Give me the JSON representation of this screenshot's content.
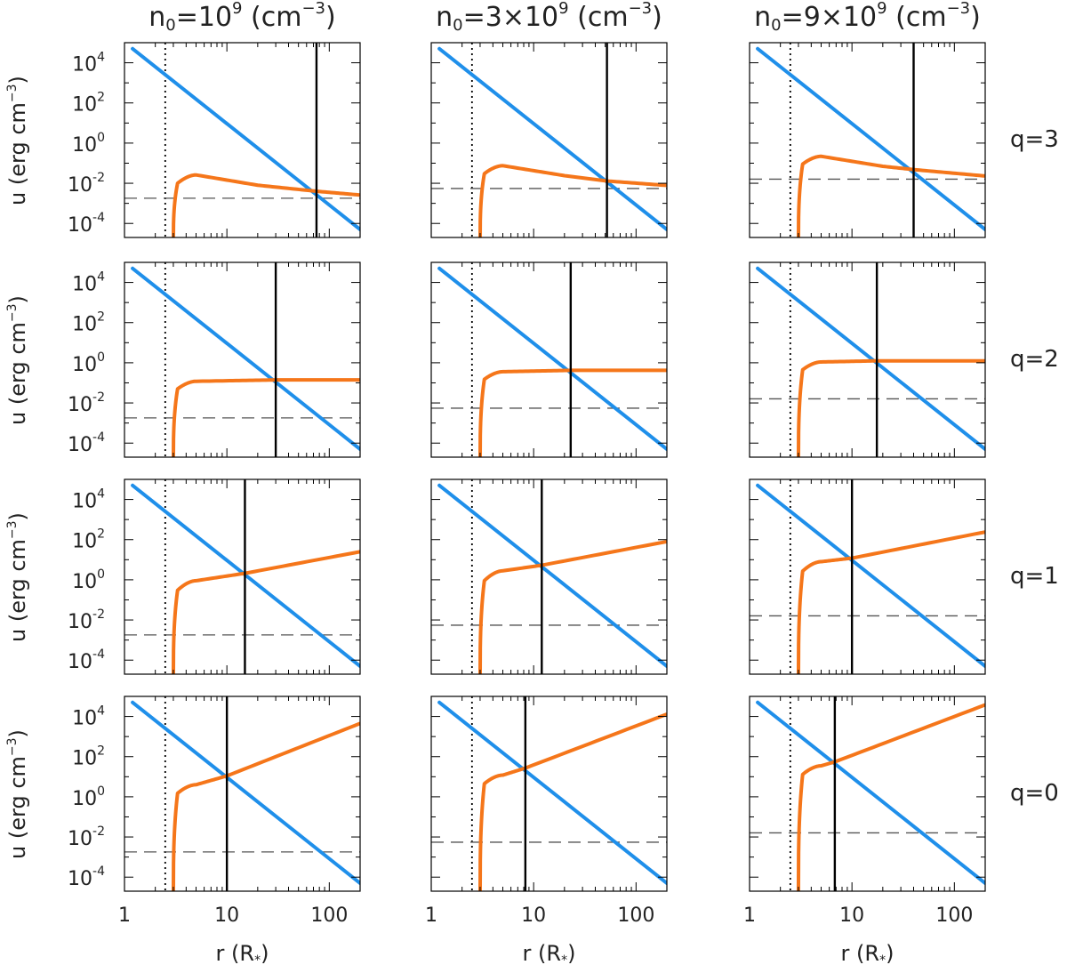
{
  "chart_data": {
    "type": "line",
    "layout": "grid 4 rows x 3 columns",
    "column_titles": [
      {
        "base": "n",
        "sub": "0",
        "prefix": "=10",
        "sup": "9",
        "unit": " (cm",
        "unit_sup": "−3",
        "close": ")"
      },
      {
        "base": "n",
        "sub": "0",
        "prefix": "=3×10",
        "sup": "9",
        "unit": " (cm",
        "unit_sup": "−3",
        "close": ")"
      },
      {
        "base": "n",
        "sub": "0",
        "prefix": "=9×10",
        "sup": "9",
        "unit": " (cm",
        "unit_sup": "−3",
        "close": ")"
      }
    ],
    "row_labels": [
      "q=3",
      "q=2",
      "q=1",
      "q=0"
    ],
    "ylabel": {
      "text": "u (erg cm",
      "sup": "−3",
      "close": ")"
    },
    "xlabel": {
      "text": "r (R",
      "sub": "*",
      "close": ")"
    },
    "xscale": "log",
    "yscale": "log",
    "xlim": [
      1,
      200
    ],
    "ylim": [
      2e-05,
      100000
    ],
    "x_tick_labels": [
      "1",
      "10",
      "100"
    ],
    "y_tick_labels": [
      {
        "base": "10",
        "exp": "4"
      },
      {
        "base": "10",
        "exp": "2"
      },
      {
        "base": "10",
        "exp": "0"
      },
      {
        "base": "10",
        "exp": "-2"
      },
      {
        "base": "10",
        "exp": "-4"
      }
    ],
    "dotted_line_r": 2.5,
    "series_colors": {
      "magnetic": "#1f8fea",
      "kinetic": "#f5761a",
      "crossing": "#000000",
      "dotted": "#000000",
      "dashed": "#555555"
    },
    "series": [
      {
        "name": "magnetic energy density (blue)",
        "form": "power law",
        "points": [
          [
            1.2,
            50000
          ],
          [
            200,
            5e-05
          ]
        ]
      },
      {
        "name": "thermal/kinetic energy density (orange)",
        "start_r": 3.0
      },
      {
        "name": "crossing radius (solid black vertical)"
      },
      {
        "name": "reference level (dashed horizontal)"
      }
    ],
    "panels": [
      {
        "row": 0,
        "col": 0,
        "q": 3,
        "crossing_r": 75,
        "dashed_u": 0.0018,
        "orange": [
          [
            3.0,
            1e-05
          ],
          [
            3.3,
            0.01
          ],
          [
            5,
            0.026
          ],
          [
            20,
            0.008
          ],
          [
            75,
            0.004
          ],
          [
            200,
            0.0026
          ]
        ]
      },
      {
        "row": 0,
        "col": 1,
        "q": 3,
        "crossing_r": 52,
        "dashed_u": 0.0055,
        "orange": [
          [
            3.0,
            1e-05
          ],
          [
            3.3,
            0.03
          ],
          [
            5,
            0.075
          ],
          [
            20,
            0.024
          ],
          [
            52,
            0.013
          ],
          [
            200,
            0.0078
          ]
        ]
      },
      {
        "row": 0,
        "col": 2,
        "q": 3,
        "crossing_r": 40,
        "dashed_u": 0.016,
        "orange": [
          [
            3.0,
            1e-05
          ],
          [
            3.3,
            0.09
          ],
          [
            5,
            0.22
          ],
          [
            20,
            0.07
          ],
          [
            40,
            0.048
          ],
          [
            200,
            0.023
          ]
        ]
      },
      {
        "row": 1,
        "col": 0,
        "q": 2,
        "crossing_r": 30,
        "dashed_u": 0.0018,
        "orange": [
          [
            3.0,
            1e-05
          ],
          [
            3.3,
            0.05
          ],
          [
            5,
            0.12
          ],
          [
            30,
            0.14
          ],
          [
            200,
            0.14
          ]
        ]
      },
      {
        "row": 1,
        "col": 1,
        "q": 2,
        "crossing_r": 23,
        "dashed_u": 0.0055,
        "orange": [
          [
            3.0,
            1e-05
          ],
          [
            3.3,
            0.15
          ],
          [
            5,
            0.36
          ],
          [
            23,
            0.42
          ],
          [
            200,
            0.42
          ]
        ]
      },
      {
        "row": 1,
        "col": 2,
        "q": 2,
        "crossing_r": 17.5,
        "dashed_u": 0.016,
        "orange": [
          [
            3.0,
            1e-05
          ],
          [
            3.3,
            0.45
          ],
          [
            5,
            1.1
          ],
          [
            17.5,
            1.25
          ],
          [
            200,
            1.25
          ]
        ]
      },
      {
        "row": 2,
        "col": 0,
        "q": 1,
        "crossing_r": 15,
        "dashed_u": 0.0018,
        "orange": [
          [
            3.0,
            1e-05
          ],
          [
            3.3,
            0.3
          ],
          [
            5,
            0.9
          ],
          [
            15,
            2.1
          ],
          [
            200,
            25
          ]
        ]
      },
      {
        "row": 2,
        "col": 1,
        "q": 1,
        "crossing_r": 12,
        "dashed_u": 0.0055,
        "orange": [
          [
            3.0,
            1e-05
          ],
          [
            3.3,
            0.9
          ],
          [
            5,
            2.8
          ],
          [
            12,
            5.3
          ],
          [
            200,
            80
          ]
        ]
      },
      {
        "row": 2,
        "col": 2,
        "q": 1,
        "crossing_r": 10,
        "dashed_u": 0.016,
        "orange": [
          [
            3.0,
            1e-05
          ],
          [
            3.3,
            2.7
          ],
          [
            5,
            8
          ],
          [
            10,
            12
          ],
          [
            200,
            240
          ]
        ]
      },
      {
        "row": 3,
        "col": 0,
        "q": 0,
        "crossing_r": 10,
        "dashed_u": 0.0018,
        "orange": [
          [
            3.0,
            1e-05
          ],
          [
            3.3,
            1.5
          ],
          [
            5,
            4
          ],
          [
            10,
            11
          ],
          [
            200,
            4500
          ]
        ]
      },
      {
        "row": 3,
        "col": 1,
        "q": 0,
        "crossing_r": 8.3,
        "dashed_u": 0.0055,
        "orange": [
          [
            3.0,
            1e-05
          ],
          [
            3.3,
            4.5
          ],
          [
            5,
            12
          ],
          [
            8.3,
            27
          ],
          [
            200,
            13000
          ]
        ]
      },
      {
        "row": 3,
        "col": 2,
        "q": 0,
        "crossing_r": 6.8,
        "dashed_u": 0.016,
        "orange": [
          [
            3.0,
            2e-05
          ],
          [
            3.3,
            13
          ],
          [
            5,
            35
          ],
          [
            6.8,
            55
          ],
          [
            200,
            38000
          ]
        ]
      }
    ]
  }
}
